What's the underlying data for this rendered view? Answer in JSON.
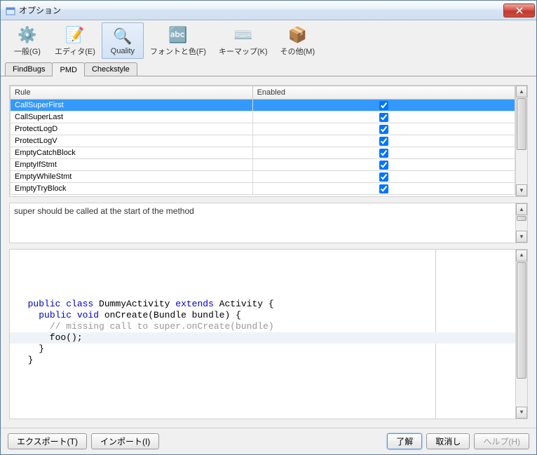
{
  "window": {
    "title": "オプション"
  },
  "toolbar": {
    "items": [
      {
        "label": "一般(G)",
        "icon": "⚙️"
      },
      {
        "label": "エディタ(E)",
        "icon": "📝"
      },
      {
        "label": "Quality",
        "icon": "🔍",
        "selected": true
      },
      {
        "label": "フォントと色(F)",
        "icon": "🔤"
      },
      {
        "label": "キーマップ(K)",
        "icon": "⌨️"
      },
      {
        "label": "その他(M)",
        "icon": "📦"
      }
    ]
  },
  "tabs": {
    "items": [
      {
        "label": "FindBugs"
      },
      {
        "label": "PMD",
        "active": true
      },
      {
        "label": "Checkstyle"
      }
    ]
  },
  "rules_table": {
    "headers": {
      "rule": "Rule",
      "enabled": "Enabled"
    },
    "col_widths": [
      "48%",
      "52%"
    ],
    "rows": [
      {
        "rule": "CallSuperFirst",
        "enabled": true,
        "selected": true
      },
      {
        "rule": "CallSuperLast",
        "enabled": true
      },
      {
        "rule": "ProtectLogD",
        "enabled": true
      },
      {
        "rule": "ProtectLogV",
        "enabled": true
      },
      {
        "rule": "EmptyCatchBlock",
        "enabled": true
      },
      {
        "rule": "EmptyIfStmt",
        "enabled": true
      },
      {
        "rule": "EmptyWhileStmt",
        "enabled": true
      },
      {
        "rule": "EmptyTryBlock",
        "enabled": true
      }
    ]
  },
  "description": "super should be called at the start of the method",
  "code": {
    "lines": [
      {
        "indent": 1,
        "tokens": [
          {
            "t": "public",
            "c": "kw"
          },
          {
            "t": " class",
            "c": "kw"
          },
          {
            "t": " DummyActivity "
          },
          {
            "t": "extends",
            "c": "kw"
          },
          {
            "t": " Activity {"
          }
        ]
      },
      {
        "indent": 2,
        "tokens": [
          {
            "t": "public",
            "c": "kw"
          },
          {
            "t": " void",
            "c": "kw"
          },
          {
            "t": " onCreate(Bundle bundle) {"
          }
        ]
      },
      {
        "indent": 3,
        "tokens": [
          {
            "t": "// missing call to super.onCreate(bundle)",
            "c": "cm"
          }
        ]
      },
      {
        "indent": 3,
        "tokens": [
          {
            "t": "foo();"
          }
        ]
      },
      {
        "indent": 2,
        "tokens": [
          {
            "t": "}"
          }
        ]
      },
      {
        "indent": 1,
        "tokens": [
          {
            "t": "}"
          }
        ]
      }
    ],
    "highlight_line": 7
  },
  "footer": {
    "export": "エクスポート(T)",
    "import": "インポート(I)",
    "ok": "了解",
    "cancel": "取消し",
    "help": "ヘルプ(H)"
  },
  "colors": {
    "selection": "#3399ff",
    "titlebar_start": "#fdfdfe",
    "titlebar_end": "#cfe0f2"
  }
}
